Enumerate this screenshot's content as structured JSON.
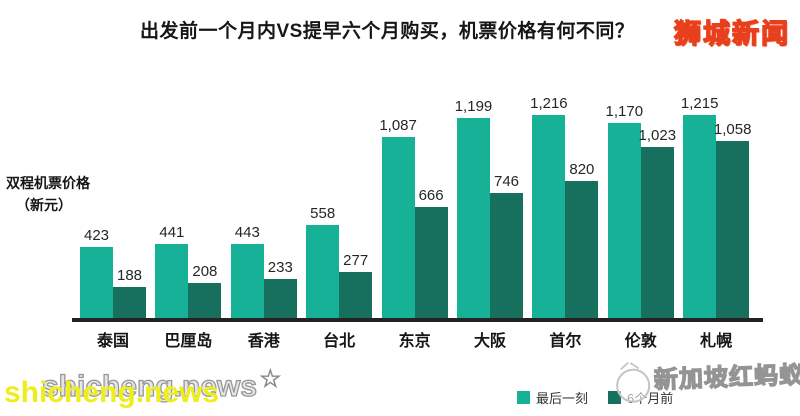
{
  "header": {
    "title": "出发前一个月内VS提早六个月购买，机票价格有何不同？",
    "site_logo": "狮城新闻",
    "site_logo_fill": "#ffe93a",
    "site_logo_stroke": "#e8401c"
  },
  "axis": {
    "y_label_line1": "双程机票价格",
    "y_label_line2": "（新元）"
  },
  "chart_data": {
    "type": "bar",
    "grouped": true,
    "title": "出发前一个月内VS提早六个月购买，机票价格有何不同？",
    "ylabel": "双程机票价格（新元）",
    "xlabel": "",
    "ylim": [
      0,
      1300
    ],
    "grid": false,
    "legend_position": "bottom-right",
    "categories": [
      "泰国",
      "巴厘岛",
      "香港",
      "台北",
      "东京",
      "大阪",
      "首尔",
      "伦敦",
      "札幌"
    ],
    "series": [
      {
        "name": "最后一刻",
        "color": "#17b198",
        "values": [
          423,
          441,
          443,
          558,
          1087,
          1199,
          1216,
          1170,
          1215
        ],
        "labels": [
          "423",
          "441",
          "443",
          "558",
          "1,087",
          "1,199",
          "1,216",
          "1,170",
          "1,215"
        ]
      },
      {
        "name": "6个月前",
        "color": "#16705d",
        "values": [
          188,
          208,
          233,
          277,
          666,
          746,
          820,
          1023,
          1058
        ],
        "labels": [
          "188",
          "208",
          "233",
          "277",
          "666",
          "746",
          "820",
          "1,023",
          "1,058"
        ]
      }
    ]
  },
  "legend": {
    "items": [
      {
        "label": "最后一刻",
        "color": "#17b198"
      },
      {
        "label": "6个月前",
        "color": "#16705d"
      }
    ]
  },
  "watermarks": {
    "front_text": "shicheng.news",
    "back_text": "shicheng.news",
    "star_icon": "☆",
    "right_text": "新加坡红蚂蚁",
    "right_icon": "ant-circle-icon"
  }
}
